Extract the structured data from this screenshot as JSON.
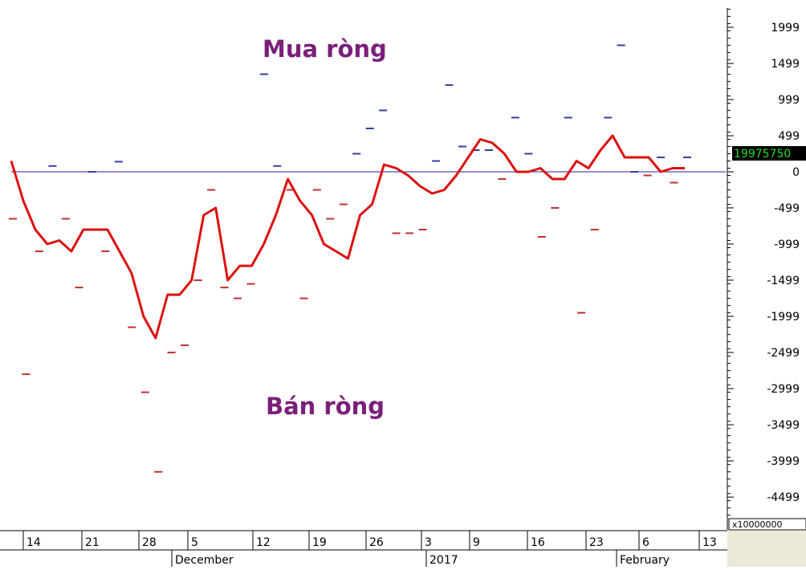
{
  "chart_data": {
    "type": "line",
    "annotations": {
      "top": "Mua ròng",
      "bottom": "Bán ròng"
    },
    "ylim": [
      -4750,
      2250
    ],
    "y_ticks": [
      "1999",
      "1499",
      "999",
      "499",
      "0",
      "-499",
      "-999",
      "-1499",
      "-1999",
      "-2499",
      "-2999",
      "-3499",
      "-3999",
      "-4499"
    ],
    "y_multiplier_label": "x10000000",
    "last_value_label": "19975750",
    "x_ticks": [
      "14",
      "21",
      "28",
      "5",
      "12",
      "19",
      "26",
      "3",
      "9",
      "16",
      "23",
      "6",
      "13"
    ],
    "month_labels": [
      "December",
      "2017",
      "February"
    ],
    "colors": {
      "line": "#dd1111",
      "dash": "#3040a0",
      "zero": "#2020a0",
      "label_box": "#000000",
      "label_text": "#22dd22",
      "corner": "#ece9d8"
    },
    "series": [
      {
        "values": [
          150,
          -400,
          -800,
          -1000,
          -950,
          -1100,
          -800,
          -800,
          -800,
          -1100,
          -1400,
          -2000,
          -2300,
          -1700,
          -1700,
          -1500,
          -600,
          -500,
          -1500,
          -1300,
          -1300,
          -1000,
          -600,
          -100,
          -400,
          -600,
          -1000,
          -1100,
          -1200,
          -600,
          -450,
          100,
          50,
          -50,
          -200,
          -300,
          -250,
          -50,
          200,
          450,
          400,
          250,
          0,
          0,
          50,
          -100,
          -100,
          150,
          50,
          300,
          500,
          200,
          200,
          200,
          0,
          50,
          50
        ]
      },
      {
        "values": [
          -650,
          -2800,
          -1100,
          80,
          -650,
          -1600,
          0,
          -1100,
          140,
          -2150,
          -3050,
          -4150,
          -2500,
          -2400,
          -1500,
          -250,
          -1600,
          -1750,
          -1550,
          1350,
          80,
          -250,
          -1750,
          -250,
          -650,
          -450,
          250,
          600,
          850,
          -850,
          -850,
          -800,
          150,
          1200,
          350,
          300,
          300,
          -100,
          750,
          250,
          -900,
          -500,
          750,
          -1950,
          -800,
          750,
          1750,
          0,
          -50,
          200,
          -150,
          200
        ]
      }
    ]
  }
}
